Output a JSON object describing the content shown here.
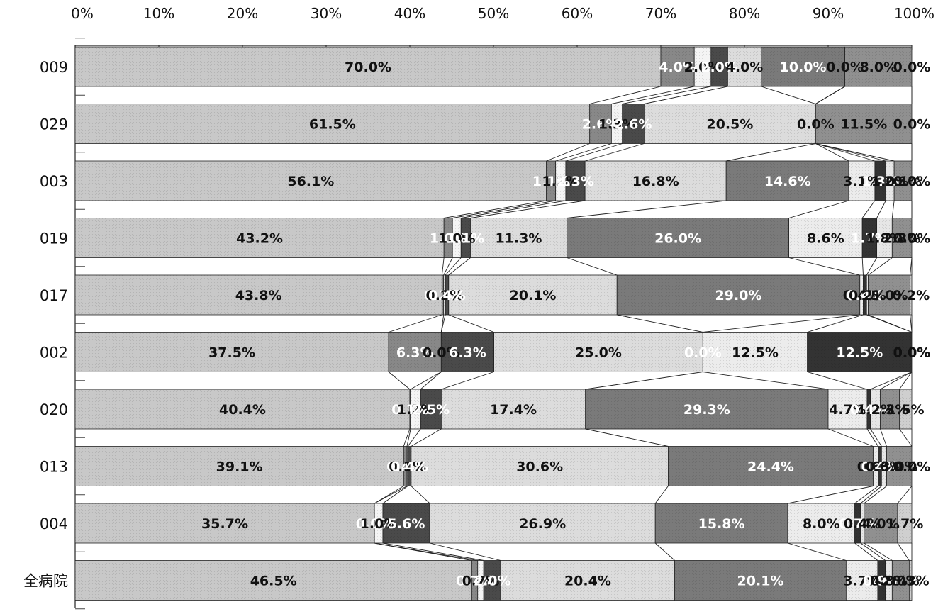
{
  "chart_data": {
    "type": "bar",
    "orientation": "horizontal",
    "stacked": "100%",
    "series_lines": true,
    "grid": false,
    "xlim": [
      0,
      100
    ],
    "x_ticks": [
      "0%",
      "10%",
      "20%",
      "30%",
      "40%",
      "50%",
      "60%",
      "70%",
      "80%",
      "90%",
      "100%"
    ],
    "categories": [
      "009",
      "029",
      "003",
      "019",
      "017",
      "002",
      "020",
      "013",
      "004",
      "全病院"
    ],
    "series": [
      {
        "color": "#c8c8c8",
        "label_color": "#111111",
        "values": [
          70.0,
          61.5,
          56.1,
          43.2,
          43.8,
          37.5,
          40.4,
          39.1,
          35.7,
          46.5
        ],
        "labels": [
          "70.0%",
          "61.5%",
          "56.1%",
          "43.2%",
          "43.8%",
          "37.5%",
          "40.4%",
          "39.1%",
          "35.7%",
          "46.5%"
        ]
      },
      {
        "color": "#888888",
        "label_color": "#ffffff",
        "values": [
          4.0,
          2.6,
          1.1,
          1.0,
          0.2,
          6.3,
          0.1,
          0.4,
          0.0,
          0.7
        ],
        "labels": [
          "4.0%",
          "2.6%",
          "1.1%",
          "1.0%",
          "0.2%",
          "6.3%",
          "0.1%",
          "0.4%",
          "0.0%",
          "0.7%"
        ]
      },
      {
        "color": "#f4f4f4",
        "label_color": "#111111",
        "values": [
          2.0,
          1.3,
          1.2,
          1.0,
          0.2,
          0.0,
          1.2,
          0.1,
          1.0,
          0.7
        ],
        "labels": [
          "2.0%",
          "1.3%",
          "1.2%",
          "1.0%",
          "0.2%",
          "0.0%",
          "1.2%",
          "0.1%",
          "1.0%",
          "0.7%"
        ]
      },
      {
        "color": "#4a4a4a",
        "label_color": "#ffffff",
        "values": [
          2.0,
          2.6,
          2.3,
          1.1,
          0.4,
          6.3,
          2.5,
          0.4,
          5.6,
          2.0
        ],
        "labels": [
          "2.0%",
          "2.6%",
          "2.3%",
          "1.1%",
          "0.4%",
          "6.3%",
          "2.5%",
          "0.4%",
          "5.6%",
          "2.0%"
        ]
      },
      {
        "color": "#dcdcdc",
        "label_color": "#111111",
        "values": [
          4.0,
          20.5,
          16.8,
          11.3,
          20.1,
          25.0,
          17.4,
          30.6,
          26.9,
          20.4
        ],
        "labels": [
          "4.0%",
          "20.5%",
          "16.8%",
          "11.3%",
          "20.1%",
          "25.0%",
          "17.4%",
          "30.6%",
          "26.9%",
          "20.4%"
        ]
      },
      {
        "color": "#7a7a7a",
        "label_color": "#ffffff",
        "values": [
          10.0,
          0.0,
          14.6,
          26.0,
          29.0,
          0.0,
          29.3,
          24.4,
          15.8,
          20.1
        ],
        "labels": [
          "10.0%",
          "0.0%",
          "14.6%",
          "26.0%",
          "29.0%",
          "0.0%",
          "29.3%",
          "24.4%",
          "15.8%",
          "20.1%"
        ]
      },
      {
        "color": "#ececec",
        "label_color": "#111111",
        "values": [
          0.0,
          0.0,
          3.1,
          8.6,
          0.4,
          12.5,
          4.7,
          0.6,
          8.0,
          3.7
        ],
        "labels": [
          "0.0%",
          "0.0%",
          "3.1%",
          "8.6%",
          "0.4%",
          "12.5%",
          "4.7%",
          "0.6%",
          "8.0%",
          "3.7%"
        ]
      },
      {
        "color": "#333333",
        "label_color": "#ffffff",
        "values": [
          0.0,
          0.0,
          1.3,
          1.7,
          0.4,
          12.5,
          0.4,
          0.4,
          0.7,
          0.9
        ],
        "labels": [
          "0.0%",
          "0.0%",
          "1.3%",
          "1.7%",
          "0.4%",
          "12.5%",
          "0.4%",
          "0.4%",
          "0.7%",
          "0.9%"
        ]
      },
      {
        "color": "#e6e6e6",
        "label_color": "#111111",
        "values": [
          0.0,
          0.0,
          1.0,
          1.8,
          0.2,
          0.0,
          1.2,
          0.6,
          0.4,
          0.8
        ],
        "labels": [
          "0.0%",
          "0.0%",
          "1.0%",
          "1.8%",
          "0.2%",
          "0.0%",
          "1.2%",
          "0.6%",
          "0.4%",
          "0.8%"
        ]
      },
      {
        "color": "#909090",
        "label_color": "#111111",
        "values": [
          8.0,
          11.5,
          2.1,
          2.3,
          5.0,
          0.0,
          2.3,
          3.0,
          4.0,
          2.0
        ],
        "labels": [
          "8.0%",
          "11.5%",
          "2.1%",
          "2.3%",
          "5.0%",
          "0.0%",
          "2.3%",
          "3.0%",
          "4.0%",
          "2.0%"
        ]
      },
      {
        "color": "#cfcfcf",
        "label_color": "#111111",
        "values": [
          0.0,
          0.0,
          0.0,
          0.0,
          0.2,
          0.0,
          1.5,
          0.0,
          1.7,
          0.3
        ],
        "labels": [
          "0.0%",
          "0.0%",
          "0.0%",
          "0.0%",
          "0.2%",
          "0.0%",
          "1.5%",
          "0.0%",
          "1.7%",
          "0.3%"
        ]
      }
    ]
  }
}
